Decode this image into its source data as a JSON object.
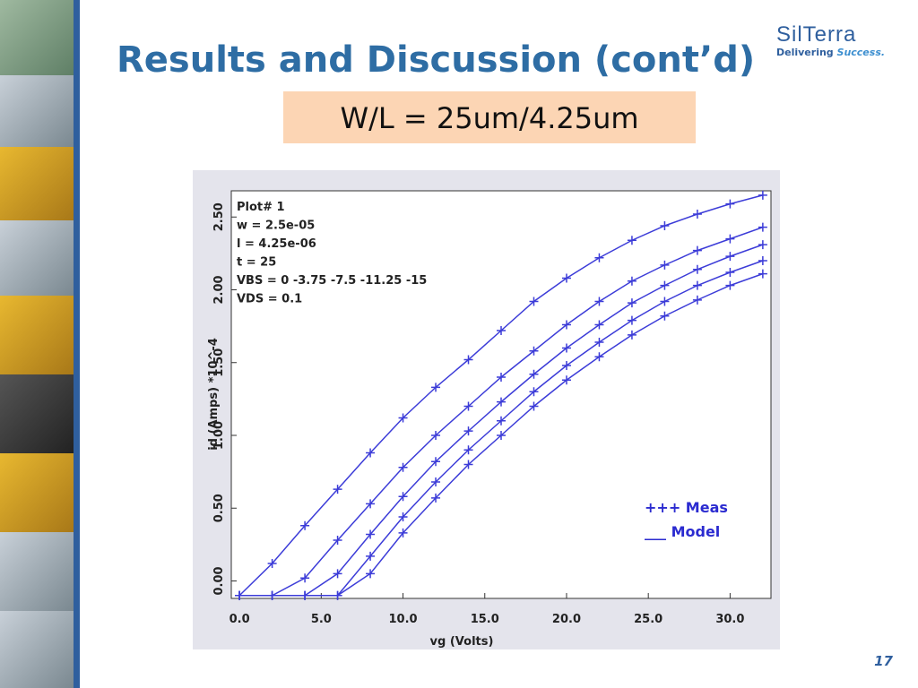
{
  "slide": {
    "title": "Results and Discussion (cont’d)",
    "subtitle": "W/L = 25um/4.25um",
    "logo": "SilTerra",
    "tagline": "Delivering",
    "tagline_emphasis": "Success.",
    "page_number": "17"
  },
  "chart_data": {
    "type": "line",
    "x_label": "vg (Volts)",
    "y_label": "id (Amps) *10^-4",
    "annotations": [
      "Plot# 1",
      "w = 2.5e-05",
      "l = 4.25e-06",
      "t = 25",
      "VBS = 0 -3.75 -7.5 -11.25 -15",
      "VDS = 0.1"
    ],
    "legend": [
      "+++ Meas",
      "___ Model"
    ],
    "x": [
      0,
      2,
      4,
      6,
      8,
      10,
      12,
      14,
      16,
      18,
      20,
      22,
      24,
      26,
      28,
      30,
      32
    ],
    "series": [
      {
        "color": "#3c3cd8",
        "values": [
          -0.1,
          0.12,
          0.38,
          0.63,
          0.88,
          1.12,
          1.33,
          1.52,
          1.72,
          1.92,
          2.08,
          2.22,
          2.34,
          2.44,
          2.52,
          2.59,
          2.65
        ]
      },
      {
        "color": "#3c3cd8",
        "values": [
          -0.1,
          -0.1,
          0.02,
          0.28,
          0.53,
          0.78,
          1.0,
          1.2,
          1.4,
          1.58,
          1.76,
          1.92,
          2.06,
          2.17,
          2.27,
          2.35,
          2.43
        ]
      },
      {
        "color": "#3c3cd8",
        "values": [
          -0.1,
          -0.1,
          -0.1,
          0.05,
          0.32,
          0.58,
          0.82,
          1.03,
          1.23,
          1.42,
          1.6,
          1.76,
          1.91,
          2.03,
          2.14,
          2.23,
          2.31
        ]
      },
      {
        "color": "#3c3cd8",
        "values": [
          -0.1,
          -0.1,
          -0.1,
          -0.1,
          0.17,
          0.44,
          0.68,
          0.9,
          1.1,
          1.3,
          1.48,
          1.64,
          1.79,
          1.92,
          2.03,
          2.12,
          2.2
        ]
      },
      {
        "color": "#3c3cd8",
        "values": [
          -0.1,
          -0.1,
          -0.1,
          -0.1,
          0.05,
          0.33,
          0.57,
          0.8,
          1.0,
          1.2,
          1.38,
          1.54,
          1.69,
          1.82,
          1.93,
          2.03,
          2.11
        ]
      }
    ],
    "xlim": [
      -0.5,
      32.5
    ],
    "ylim": [
      -0.12,
      2.68
    ],
    "xticks": [
      {
        "value": 0,
        "label": "0.0"
      },
      {
        "value": 5,
        "label": "5.0"
      },
      {
        "value": 10,
        "label": "10.0"
      },
      {
        "value": 15,
        "label": "15.0"
      },
      {
        "value": 20,
        "label": "20.0"
      },
      {
        "value": 25,
        "label": "25.0"
      },
      {
        "value": 30,
        "label": "30.0"
      }
    ],
    "yticks": [
      {
        "value": 0,
        "label": "0.00"
      },
      {
        "value": 0.5,
        "label": "0.50"
      },
      {
        "value": 1,
        "label": "1.00"
      },
      {
        "value": 1.5,
        "label": "1.50"
      },
      {
        "value": 2,
        "label": "2.00"
      },
      {
        "value": 2.5,
        "label": "2.50"
      }
    ]
  }
}
